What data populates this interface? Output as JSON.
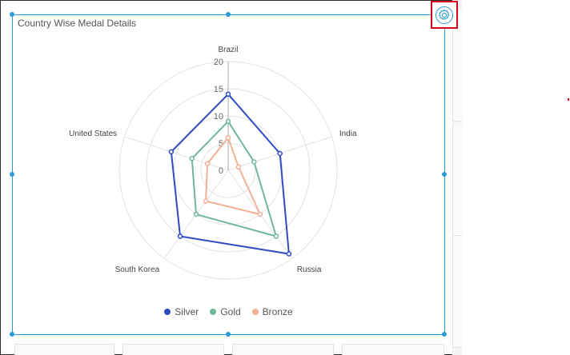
{
  "widget": {
    "title": "Country Wise Medal Details",
    "settings_icon": "gear-icon"
  },
  "chart_data": {
    "type": "radar",
    "categories": [
      "Brazil",
      "India",
      "Russia",
      "South Korea",
      "United States"
    ],
    "radial_axis": {
      "ticks": [
        0,
        5,
        10,
        15,
        20
      ],
      "range": [
        0,
        20
      ]
    },
    "series": [
      {
        "name": "Silver",
        "color": "#2f4bc4",
        "values": [
          14,
          10,
          19,
          15,
          11
        ]
      },
      {
        "name": "Gold",
        "color": "#6eb89a",
        "values": [
          9,
          5,
          15,
          10,
          7
        ]
      },
      {
        "name": "Bronze",
        "color": "#f2b094",
        "values": [
          6,
          2,
          10,
          7,
          4
        ]
      }
    ],
    "legend_position": "bottom"
  }
}
